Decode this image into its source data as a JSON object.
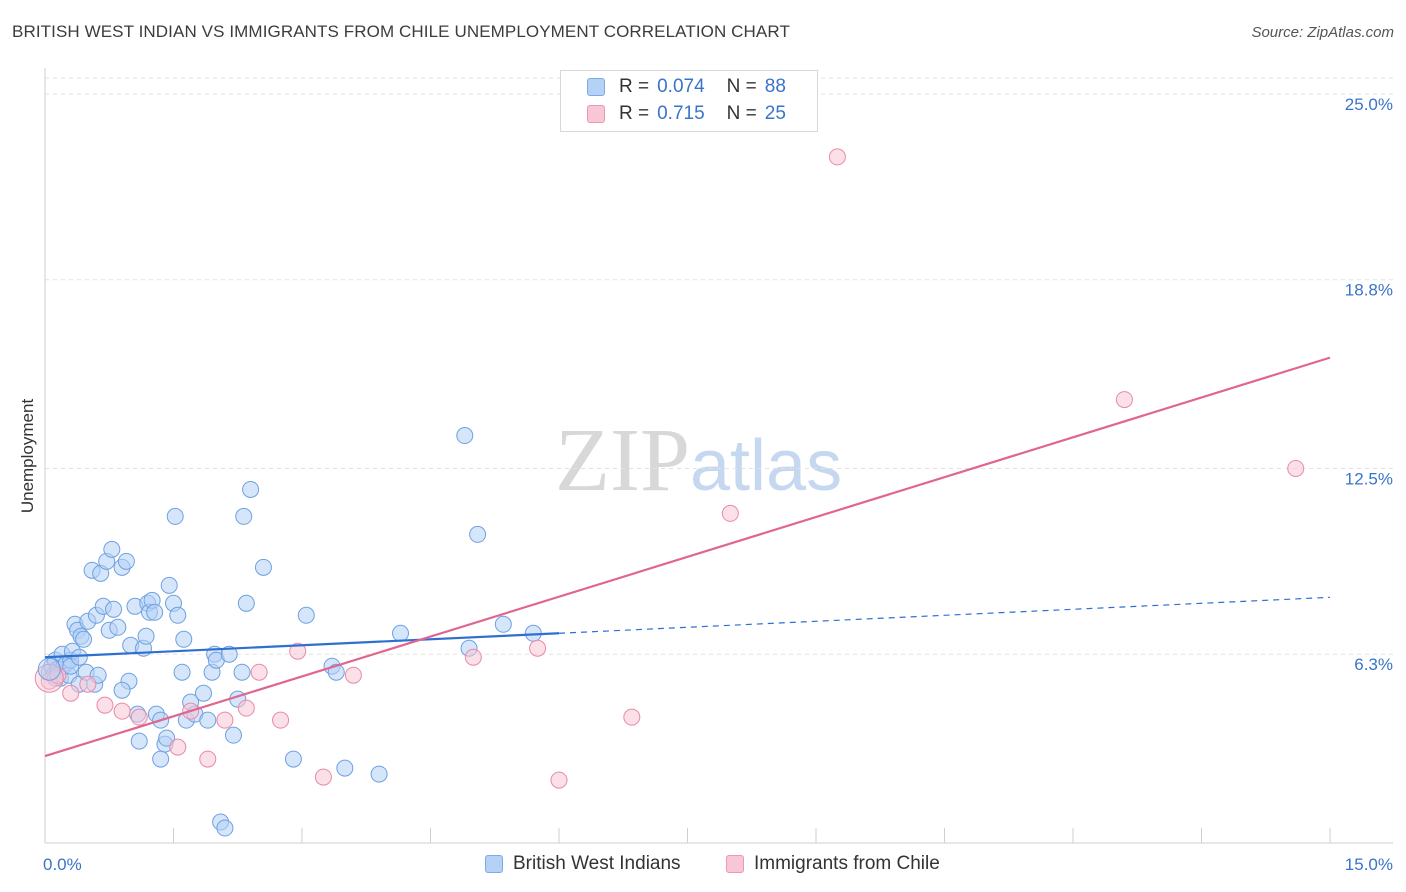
{
  "chart_data": {
    "type": "scatter",
    "title": "BRITISH WEST INDIAN VS IMMIGRANTS FROM CHILE UNEMPLOYMENT CORRELATION CHART",
    "source": "Source: ZipAtlas.com",
    "xlabel": "",
    "ylabel": "Unemployment",
    "xlim": [
      0,
      15
    ],
    "ylim": [
      0,
      25.8
    ],
    "y_ticks": [
      {
        "value": 25.0,
        "label": "25.0%"
      },
      {
        "value": 18.8,
        "label": "18.8%"
      },
      {
        "value": 12.5,
        "label": "12.5%"
      },
      {
        "value": 6.3,
        "label": "6.3%"
      }
    ],
    "x_tick_labels": [
      {
        "value": 0,
        "label": "0.0%"
      },
      {
        "value": 15,
        "label": "15.0%"
      }
    ],
    "x_minor_ticks": [
      1.5,
      3,
      4.5,
      6,
      7.5,
      9,
      10.5,
      12,
      13.5,
      15
    ],
    "grid": true,
    "watermark": "ZIPatlas",
    "legend": {
      "position": "top-center",
      "entries": [
        {
          "r_label": "R =",
          "r_value": "0.074",
          "n_label": "N =",
          "n_value": "88"
        },
        {
          "r_label": "R =",
          "r_value": "0.715",
          "n_label": "N =",
          "n_value": "25"
        }
      ]
    },
    "series": [
      {
        "name": "British West Indians",
        "color": "#6fa0e0",
        "fill": "#b5d1f5",
        "trend": {
          "x0": 0,
          "y0": 6.2,
          "x1": 6,
          "y1": 7.0,
          "dash_to_x": 15,
          "dash_to_y": 8.2
        },
        "points": [
          [
            0.05,
            5.7
          ],
          [
            0.08,
            5.9
          ],
          [
            0.1,
            5.6
          ],
          [
            0.12,
            6.1
          ],
          [
            0.15,
            5.8
          ],
          [
            0.18,
            5.5
          ],
          [
            0.2,
            6.3
          ],
          [
            0.22,
            5.9
          ],
          [
            0.25,
            6.0
          ],
          [
            0.28,
            5.6
          ],
          [
            0.3,
            6.1
          ],
          [
            0.32,
            6.4
          ],
          [
            0.35,
            7.3
          ],
          [
            0.38,
            7.1
          ],
          [
            0.4,
            5.3
          ],
          [
            0.42,
            6.9
          ],
          [
            0.45,
            6.8
          ],
          [
            0.48,
            5.7
          ],
          [
            0.5,
            7.4
          ],
          [
            0.55,
            9.1
          ],
          [
            0.58,
            5.3
          ],
          [
            0.6,
            7.6
          ],
          [
            0.65,
            9.0
          ],
          [
            0.68,
            7.9
          ],
          [
            0.72,
            9.4
          ],
          [
            0.75,
            7.1
          ],
          [
            0.78,
            9.8
          ],
          [
            0.8,
            7.8
          ],
          [
            0.85,
            7.2
          ],
          [
            0.9,
            9.2
          ],
          [
            0.95,
            9.4
          ],
          [
            0.98,
            5.4
          ],
          [
            1.0,
            6.6
          ],
          [
            1.05,
            7.9
          ],
          [
            1.08,
            4.3
          ],
          [
            1.1,
            3.4
          ],
          [
            1.15,
            6.5
          ],
          [
            1.18,
            6.9
          ],
          [
            1.2,
            8.0
          ],
          [
            1.22,
            7.7
          ],
          [
            1.25,
            8.1
          ],
          [
            1.28,
            7.7
          ],
          [
            1.3,
            4.3
          ],
          [
            1.35,
            4.1
          ],
          [
            1.4,
            3.3
          ],
          [
            1.42,
            3.5
          ],
          [
            1.45,
            8.6
          ],
          [
            1.5,
            8.0
          ],
          [
            1.52,
            10.9
          ],
          [
            1.55,
            7.6
          ],
          [
            1.6,
            5.7
          ],
          [
            1.62,
            6.8
          ],
          [
            1.65,
            4.1
          ],
          [
            1.7,
            4.7
          ],
          [
            1.75,
            4.3
          ],
          [
            1.85,
            5.0
          ],
          [
            1.9,
            4.1
          ],
          [
            1.95,
            5.7
          ],
          [
            1.98,
            6.3
          ],
          [
            2.0,
            6.1
          ],
          [
            2.05,
            0.7
          ],
          [
            2.1,
            0.5
          ],
          [
            2.15,
            6.3
          ],
          [
            2.2,
            3.6
          ],
          [
            2.25,
            4.8
          ],
          [
            2.3,
            5.7
          ],
          [
            2.32,
            10.9
          ],
          [
            2.35,
            8.0
          ],
          [
            2.4,
            11.8
          ],
          [
            2.55,
            9.2
          ],
          [
            2.9,
            2.8
          ],
          [
            3.05,
            7.6
          ],
          [
            3.35,
            5.9
          ],
          [
            3.4,
            5.7
          ],
          [
            3.5,
            2.5
          ],
          [
            3.9,
            2.3
          ],
          [
            4.15,
            7.0
          ],
          [
            4.9,
            13.6
          ],
          [
            5.05,
            10.3
          ],
          [
            4.95,
            6.5
          ],
          [
            5.35,
            7.3
          ],
          [
            5.7,
            7.0
          ],
          [
            1.35,
            2.8
          ],
          [
            0.62,
            5.6
          ],
          [
            0.9,
            5.1
          ],
          [
            0.3,
            5.9
          ],
          [
            0.12,
            5.5
          ],
          [
            0.4,
            6.2
          ]
        ]
      },
      {
        "name": "Immigrants from Chile",
        "color": "#e78aa8",
        "fill": "#f9c6d5",
        "trend": {
          "x0": 0,
          "y0": 2.9,
          "x1": 15,
          "y1": 16.2
        },
        "points": [
          [
            0.05,
            5.4
          ],
          [
            0.15,
            5.6
          ],
          [
            0.3,
            5.0
          ],
          [
            0.5,
            5.3
          ],
          [
            0.7,
            4.6
          ],
          [
            0.9,
            4.4
          ],
          [
            1.1,
            4.2
          ],
          [
            1.55,
            3.2
          ],
          [
            1.7,
            4.4
          ],
          [
            1.9,
            2.8
          ],
          [
            2.1,
            4.1
          ],
          [
            2.35,
            4.5
          ],
          [
            2.5,
            5.7
          ],
          [
            2.75,
            4.1
          ],
          [
            2.95,
            6.4
          ],
          [
            3.25,
            2.2
          ],
          [
            3.6,
            5.6
          ],
          [
            5.0,
            6.2
          ],
          [
            5.75,
            6.5
          ],
          [
            6.0,
            2.1
          ],
          [
            6.85,
            4.2
          ],
          [
            8.0,
            11.0
          ],
          [
            9.25,
            22.9
          ],
          [
            12.6,
            14.8
          ],
          [
            14.6,
            12.5
          ]
        ]
      }
    ]
  }
}
